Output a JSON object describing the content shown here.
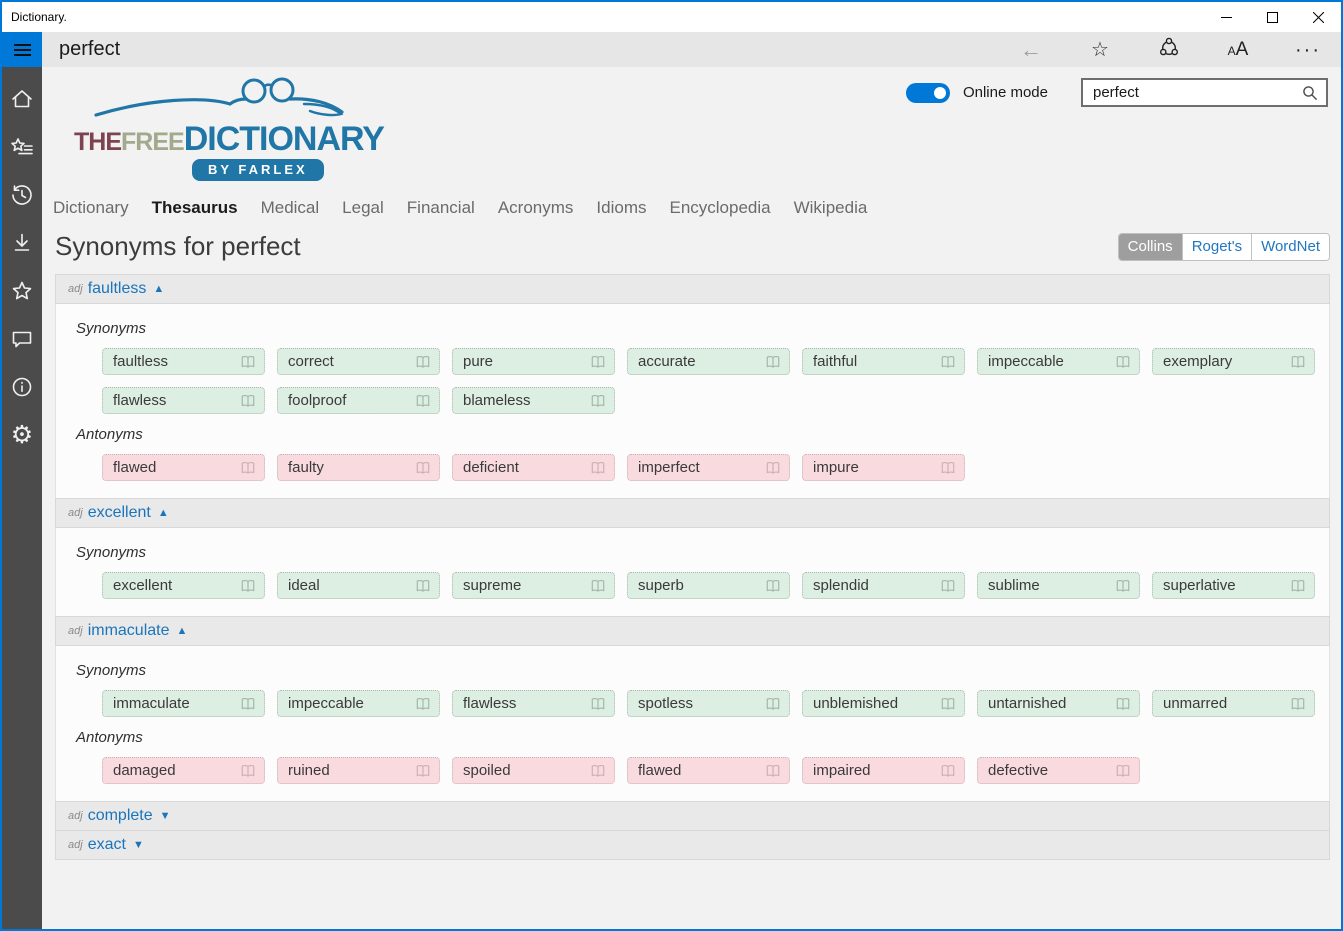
{
  "window": {
    "title": "Dictionary."
  },
  "app_header": {
    "title": "perfect"
  },
  "sidebar": {
    "items": [
      {
        "id": "home",
        "icon": "home-icon"
      },
      {
        "id": "wordlist",
        "icon": "star-list-icon"
      },
      {
        "id": "history",
        "icon": "history-icon"
      },
      {
        "id": "downloads",
        "icon": "download-icon"
      },
      {
        "id": "favorites",
        "icon": "star-icon"
      },
      {
        "id": "feedback",
        "icon": "comment-icon"
      },
      {
        "id": "about",
        "icon": "info-icon"
      },
      {
        "id": "settings",
        "icon": "gear-icon"
      }
    ]
  },
  "toolbar": {
    "online_mode_label": "Online mode",
    "search_value": "perfect"
  },
  "logo": {
    "word1": "THE",
    "word2": "FREE",
    "word3": "DICTIONARY",
    "byline": "BY FARLEX"
  },
  "nav": {
    "tabs": [
      {
        "label": "Dictionary",
        "active": false
      },
      {
        "label": "Thesaurus",
        "active": true
      },
      {
        "label": "Medical",
        "active": false
      },
      {
        "label": "Legal",
        "active": false
      },
      {
        "label": "Financial",
        "active": false
      },
      {
        "label": "Acronyms",
        "active": false
      },
      {
        "label": "Idioms",
        "active": false
      },
      {
        "label": "Encyclopedia",
        "active": false
      },
      {
        "label": "Wikipedia",
        "active": false
      }
    ]
  },
  "page": {
    "title": "Synonyms for perfect",
    "sources": [
      {
        "label": "Collins",
        "selected": true
      },
      {
        "label": "Roget's",
        "selected": false
      },
      {
        "label": "WordNet",
        "selected": false
      }
    ]
  },
  "ui": {
    "collapse_indicator": "▲",
    "expand_indicator": "▼"
  },
  "sections": [
    {
      "pos": "adj",
      "word": "faultless",
      "expanded": true,
      "groups": [
        {
          "label": "Synonyms",
          "type": "syn",
          "words": [
            "faultless",
            "correct",
            "pure",
            "accurate",
            "faithful",
            "impeccable",
            "exemplary",
            "flawless",
            "foolproof",
            "blameless"
          ]
        },
        {
          "label": "Antonyms",
          "type": "ant",
          "words": [
            "flawed",
            "faulty",
            "deficient",
            "imperfect",
            "impure"
          ]
        }
      ]
    },
    {
      "pos": "adj",
      "word": "excellent",
      "expanded": true,
      "groups": [
        {
          "label": "Synonyms",
          "type": "syn",
          "words": [
            "excellent",
            "ideal",
            "supreme",
            "superb",
            "splendid",
            "sublime",
            "superlative"
          ]
        }
      ]
    },
    {
      "pos": "adj",
      "word": "immaculate",
      "expanded": true,
      "groups": [
        {
          "label": "Synonyms",
          "type": "syn",
          "words": [
            "immaculate",
            "impeccable",
            "flawless",
            "spotless",
            "unblemished",
            "untarnished",
            "unmarred"
          ]
        },
        {
          "label": "Antonyms",
          "type": "ant",
          "words": [
            "damaged",
            "ruined",
            "spoiled",
            "flawed",
            "impaired",
            "defective"
          ]
        }
      ]
    },
    {
      "pos": "adj",
      "word": "complete",
      "expanded": false,
      "groups": []
    },
    {
      "pos": "adj",
      "word": "exact",
      "expanded": false,
      "groups": []
    }
  ],
  "colors": {
    "accent": "#0078d7",
    "link_blue": "#1b75bb",
    "synonym_bg": "#ddeee3",
    "antonym_bg": "#f9dade",
    "sidebar_bg": "#4b4b4b",
    "header_bg": "#e6e6e6"
  }
}
